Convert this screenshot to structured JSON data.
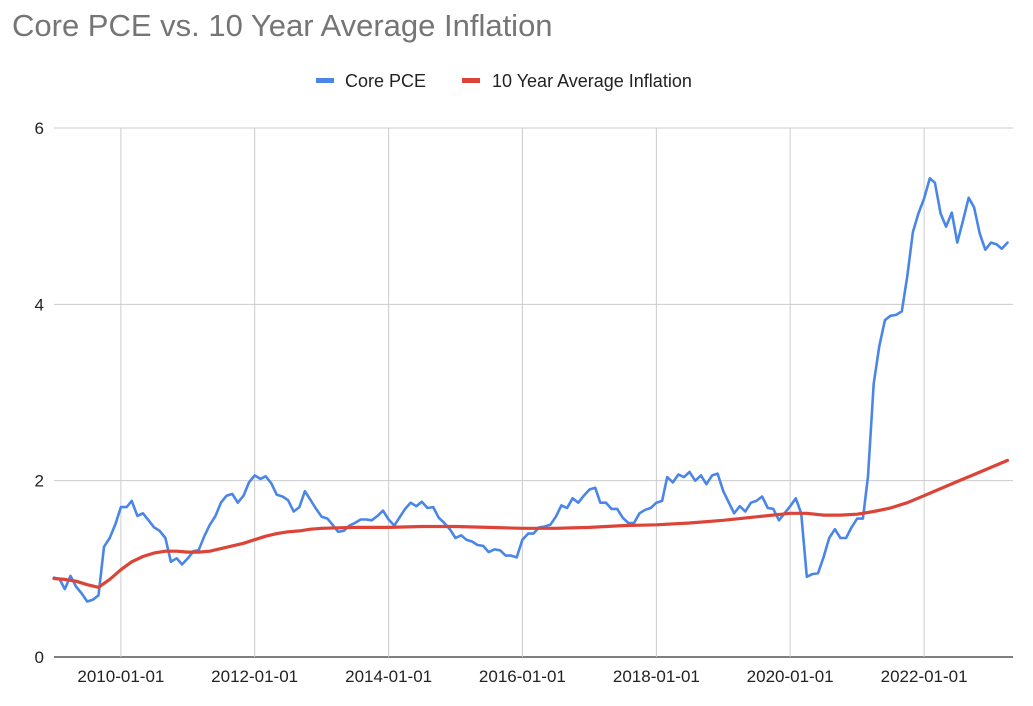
{
  "chart_data": {
    "type": "line",
    "title": "Core PCE vs. 10 Year Average Inflation",
    "xlabel": "",
    "ylabel": "",
    "x_start": "2009-01-01",
    "x_end": "2023-05-01",
    "ylim": [
      0,
      6
    ],
    "y_ticks": [
      "0",
      "2",
      "4",
      "6"
    ],
    "x_ticks": [
      {
        "label": "2010-01-01",
        "date": "2010-01-01"
      },
      {
        "label": "2012-01-01",
        "date": "2012-01-01"
      },
      {
        "label": "2014-01-01",
        "date": "2014-01-01"
      },
      {
        "label": "2016-01-01",
        "date": "2016-01-01"
      },
      {
        "label": "2018-01-01",
        "date": "2018-01-01"
      },
      {
        "label": "2020-01-01",
        "date": "2020-01-01"
      },
      {
        "label": "2022-01-01",
        "date": "2022-01-01"
      }
    ],
    "grid": true,
    "legend_position": "top",
    "series": [
      {
        "name": "Core PCE",
        "color": "#4a86e8",
        "points": [
          [
            "2009-01-01",
            0.9
          ],
          [
            "2009-02-01",
            0.88
          ],
          [
            "2009-03-01",
            0.77
          ],
          [
            "2009-04-01",
            0.92
          ],
          [
            "2009-05-01",
            0.8
          ],
          [
            "2009-06-01",
            0.72
          ],
          [
            "2009-07-01",
            0.63
          ],
          [
            "2009-08-01",
            0.65
          ],
          [
            "2009-09-01",
            0.7
          ],
          [
            "2009-10-01",
            1.25
          ],
          [
            "2009-11-01",
            1.35
          ],
          [
            "2009-12-01",
            1.5
          ],
          [
            "2010-01-01",
            1.7
          ],
          [
            "2010-02-01",
            1.7
          ],
          [
            "2010-03-01",
            1.77
          ],
          [
            "2010-04-01",
            1.6
          ],
          [
            "2010-05-01",
            1.63
          ],
          [
            "2010-06-01",
            1.55
          ],
          [
            "2010-07-01",
            1.47
          ],
          [
            "2010-08-01",
            1.43
          ],
          [
            "2010-09-01",
            1.35
          ],
          [
            "2010-10-01",
            1.08
          ],
          [
            "2010-11-01",
            1.12
          ],
          [
            "2010-12-01",
            1.05
          ],
          [
            "2011-01-01",
            1.12
          ],
          [
            "2011-02-01",
            1.2
          ],
          [
            "2011-03-01",
            1.21
          ],
          [
            "2011-04-01",
            1.37
          ],
          [
            "2011-05-01",
            1.5
          ],
          [
            "2011-06-01",
            1.6
          ],
          [
            "2011-07-01",
            1.75
          ],
          [
            "2011-08-01",
            1.83
          ],
          [
            "2011-09-01",
            1.85
          ],
          [
            "2011-10-01",
            1.75
          ],
          [
            "2011-11-01",
            1.83
          ],
          [
            "2011-12-01",
            1.98
          ],
          [
            "2012-01-01",
            2.06
          ],
          [
            "2012-02-01",
            2.02
          ],
          [
            "2012-03-01",
            2.05
          ],
          [
            "2012-04-01",
            1.97
          ],
          [
            "2012-05-01",
            1.84
          ],
          [
            "2012-06-01",
            1.82
          ],
          [
            "2012-07-01",
            1.78
          ],
          [
            "2012-08-01",
            1.65
          ],
          [
            "2012-09-01",
            1.7
          ],
          [
            "2012-10-01",
            1.88
          ],
          [
            "2012-11-01",
            1.78
          ],
          [
            "2012-12-01",
            1.68
          ],
          [
            "2013-01-01",
            1.59
          ],
          [
            "2013-02-01",
            1.57
          ],
          [
            "2013-03-01",
            1.5
          ],
          [
            "2013-04-01",
            1.42
          ],
          [
            "2013-05-01",
            1.43
          ],
          [
            "2013-06-01",
            1.49
          ],
          [
            "2013-07-01",
            1.52
          ],
          [
            "2013-08-01",
            1.56
          ],
          [
            "2013-09-01",
            1.56
          ],
          [
            "2013-10-01",
            1.55
          ],
          [
            "2013-11-01",
            1.6
          ],
          [
            "2013-12-01",
            1.66
          ],
          [
            "2014-01-01",
            1.56
          ],
          [
            "2014-02-01",
            1.49
          ],
          [
            "2014-03-01",
            1.58
          ],
          [
            "2014-04-01",
            1.68
          ],
          [
            "2014-05-01",
            1.75
          ],
          [
            "2014-06-01",
            1.71
          ],
          [
            "2014-07-01",
            1.76
          ],
          [
            "2014-08-01",
            1.69
          ],
          [
            "2014-09-01",
            1.7
          ],
          [
            "2014-10-01",
            1.58
          ],
          [
            "2014-11-01",
            1.52
          ],
          [
            "2014-12-01",
            1.45
          ],
          [
            "2015-01-01",
            1.35
          ],
          [
            "2015-02-01",
            1.38
          ],
          [
            "2015-03-01",
            1.33
          ],
          [
            "2015-04-01",
            1.31
          ],
          [
            "2015-05-01",
            1.27
          ],
          [
            "2015-06-01",
            1.26
          ],
          [
            "2015-07-01",
            1.19
          ],
          [
            "2015-08-01",
            1.22
          ],
          [
            "2015-09-01",
            1.21
          ],
          [
            "2015-10-01",
            1.15
          ],
          [
            "2015-11-01",
            1.15
          ],
          [
            "2015-12-01",
            1.13
          ],
          [
            "2016-01-01",
            1.33
          ],
          [
            "2016-02-01",
            1.4
          ],
          [
            "2016-03-01",
            1.4
          ],
          [
            "2016-04-01",
            1.47
          ],
          [
            "2016-05-01",
            1.48
          ],
          [
            "2016-06-01",
            1.5
          ],
          [
            "2016-07-01",
            1.59
          ],
          [
            "2016-08-01",
            1.72
          ],
          [
            "2016-09-01",
            1.69
          ],
          [
            "2016-10-01",
            1.8
          ],
          [
            "2016-11-01",
            1.75
          ],
          [
            "2016-12-01",
            1.83
          ],
          [
            "2017-01-01",
            1.9
          ],
          [
            "2017-02-01",
            1.92
          ],
          [
            "2017-03-01",
            1.75
          ],
          [
            "2017-04-01",
            1.75
          ],
          [
            "2017-05-01",
            1.68
          ],
          [
            "2017-06-01",
            1.68
          ],
          [
            "2017-07-01",
            1.58
          ],
          [
            "2017-08-01",
            1.52
          ],
          [
            "2017-09-01",
            1.52
          ],
          [
            "2017-10-01",
            1.63
          ],
          [
            "2017-11-01",
            1.67
          ],
          [
            "2017-12-01",
            1.69
          ],
          [
            "2018-01-01",
            1.75
          ],
          [
            "2018-02-01",
            1.77
          ],
          [
            "2018-03-01",
            2.04
          ],
          [
            "2018-04-01",
            1.98
          ],
          [
            "2018-05-01",
            2.07
          ],
          [
            "2018-06-01",
            2.04
          ],
          [
            "2018-07-01",
            2.1
          ],
          [
            "2018-08-01",
            2.0
          ],
          [
            "2018-09-01",
            2.06
          ],
          [
            "2018-10-01",
            1.96
          ],
          [
            "2018-11-01",
            2.06
          ],
          [
            "2018-12-01",
            2.08
          ],
          [
            "2019-01-01",
            1.88
          ],
          [
            "2019-02-01",
            1.75
          ],
          [
            "2019-03-01",
            1.63
          ],
          [
            "2019-04-01",
            1.71
          ],
          [
            "2019-05-01",
            1.65
          ],
          [
            "2019-06-01",
            1.75
          ],
          [
            "2019-07-01",
            1.77
          ],
          [
            "2019-08-01",
            1.82
          ],
          [
            "2019-09-01",
            1.69
          ],
          [
            "2019-10-01",
            1.68
          ],
          [
            "2019-11-01",
            1.55
          ],
          [
            "2019-12-01",
            1.63
          ],
          [
            "2020-01-01",
            1.71
          ],
          [
            "2020-02-01",
            1.8
          ],
          [
            "2020-03-01",
            1.63
          ],
          [
            "2020-04-01",
            0.91
          ],
          [
            "2020-05-01",
            0.94
          ],
          [
            "2020-06-01",
            0.95
          ],
          [
            "2020-07-01",
            1.13
          ],
          [
            "2020-08-01",
            1.35
          ],
          [
            "2020-09-01",
            1.45
          ],
          [
            "2020-10-01",
            1.35
          ],
          [
            "2020-11-01",
            1.35
          ],
          [
            "2020-12-01",
            1.47
          ],
          [
            "2021-01-01",
            1.57
          ],
          [
            "2021-02-01",
            1.57
          ],
          [
            "2021-03-01",
            2.05
          ],
          [
            "2021-04-01",
            3.1
          ],
          [
            "2021-05-01",
            3.52
          ],
          [
            "2021-06-01",
            3.82
          ],
          [
            "2021-07-01",
            3.87
          ],
          [
            "2021-08-01",
            3.88
          ],
          [
            "2021-09-01",
            3.92
          ],
          [
            "2021-10-01",
            4.32
          ],
          [
            "2021-11-01",
            4.82
          ],
          [
            "2021-12-01",
            5.03
          ],
          [
            "2022-01-01",
            5.2
          ],
          [
            "2022-02-01",
            5.43
          ],
          [
            "2022-03-01",
            5.38
          ],
          [
            "2022-04-01",
            5.03
          ],
          [
            "2022-05-01",
            4.88
          ],
          [
            "2022-06-01",
            5.04
          ],
          [
            "2022-07-01",
            4.7
          ],
          [
            "2022-08-01",
            4.95
          ],
          [
            "2022-09-01",
            5.21
          ],
          [
            "2022-10-01",
            5.1
          ],
          [
            "2022-11-01",
            4.8
          ],
          [
            "2022-12-01",
            4.62
          ],
          [
            "2023-01-01",
            4.7
          ],
          [
            "2023-02-01",
            4.68
          ],
          [
            "2023-03-01",
            4.63
          ],
          [
            "2023-04-01",
            4.7
          ]
        ]
      },
      {
        "name": "10 Year Average Inflation",
        "color": "#db4437",
        "points": [
          [
            "2009-01-01",
            0.89
          ],
          [
            "2009-03-01",
            0.88
          ],
          [
            "2009-05-01",
            0.86
          ],
          [
            "2009-07-01",
            0.82
          ],
          [
            "2009-09-01",
            0.79
          ],
          [
            "2009-11-01",
            0.88
          ],
          [
            "2010-01-01",
            0.99
          ],
          [
            "2010-03-01",
            1.08
          ],
          [
            "2010-05-01",
            1.14
          ],
          [
            "2010-07-01",
            1.18
          ],
          [
            "2010-09-01",
            1.2
          ],
          [
            "2010-11-01",
            1.2
          ],
          [
            "2011-01-01",
            1.19
          ],
          [
            "2011-03-01",
            1.19
          ],
          [
            "2011-05-01",
            1.2
          ],
          [
            "2011-07-01",
            1.23
          ],
          [
            "2011-09-01",
            1.26
          ],
          [
            "2011-11-01",
            1.29
          ],
          [
            "2012-01-01",
            1.33
          ],
          [
            "2012-03-01",
            1.37
          ],
          [
            "2012-05-01",
            1.4
          ],
          [
            "2012-07-01",
            1.42
          ],
          [
            "2012-09-01",
            1.43
          ],
          [
            "2012-11-01",
            1.45
          ],
          [
            "2013-01-01",
            1.46
          ],
          [
            "2013-07-01",
            1.47
          ],
          [
            "2014-01-01",
            1.47
          ],
          [
            "2014-07-01",
            1.48
          ],
          [
            "2015-01-01",
            1.48
          ],
          [
            "2015-07-01",
            1.47
          ],
          [
            "2016-01-01",
            1.46
          ],
          [
            "2016-07-01",
            1.46
          ],
          [
            "2017-01-01",
            1.47
          ],
          [
            "2017-07-01",
            1.49
          ],
          [
            "2018-01-01",
            1.5
          ],
          [
            "2018-07-01",
            1.52
          ],
          [
            "2019-01-01",
            1.55
          ],
          [
            "2019-07-01",
            1.59
          ],
          [
            "2020-01-01",
            1.63
          ],
          [
            "2020-04-01",
            1.63
          ],
          [
            "2020-07-01",
            1.61
          ],
          [
            "2020-10-01",
            1.61
          ],
          [
            "2021-01-01",
            1.62
          ],
          [
            "2021-04-01",
            1.65
          ],
          [
            "2021-07-01",
            1.69
          ],
          [
            "2021-10-01",
            1.75
          ],
          [
            "2022-01-01",
            1.83
          ],
          [
            "2022-04-01",
            1.91
          ],
          [
            "2022-07-01",
            1.99
          ],
          [
            "2022-10-01",
            2.07
          ],
          [
            "2023-01-01",
            2.15
          ],
          [
            "2023-04-01",
            2.23
          ]
        ]
      }
    ]
  }
}
